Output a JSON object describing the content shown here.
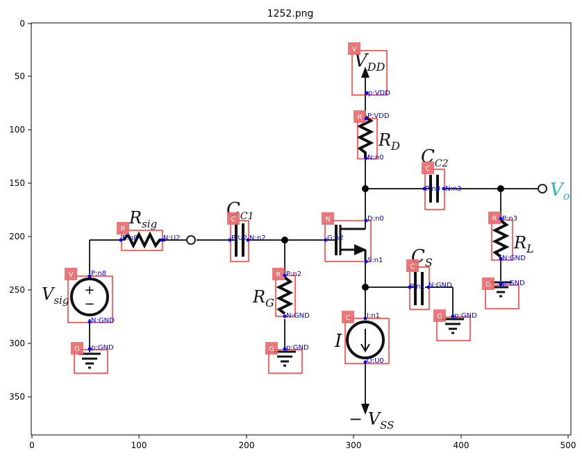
{
  "title": "1252.png",
  "axes": {
    "x_ticks": [
      "0",
      "100",
      "200",
      "300",
      "400",
      "500"
    ],
    "y_ticks": [
      "0",
      "50",
      "100",
      "150",
      "200",
      "250",
      "300",
      "350"
    ]
  },
  "components": {
    "vdd": {
      "badge": "V",
      "pins": [
        "p:VDD"
      ]
    },
    "rd": {
      "badge": "R",
      "pins": [
        "P:VDD",
        "N:n0"
      ]
    },
    "cc2": {
      "badge": "C",
      "pins": [
        "P:n0",
        "N:n3"
      ]
    },
    "rl": {
      "badge": "R",
      "pins": [
        "P:n3",
        "N:GND"
      ]
    },
    "gnd_rl": {
      "badge": "G",
      "pins": [
        "p:GND"
      ]
    },
    "rsig": {
      "badge": "R",
      "pins": [
        "P:n8",
        "N:U2"
      ]
    },
    "cc1": {
      "badge": "C",
      "pins": [
        "P:U2",
        "N:n2"
      ]
    },
    "nmos": {
      "badge": "N",
      "pins": [
        "D:n0",
        "G:n2",
        "S:n1"
      ]
    },
    "rg": {
      "badge": "R",
      "pins": [
        "P:n2",
        "N:GND"
      ]
    },
    "gnd_rg": {
      "badge": "G",
      "pins": [
        "p:GND"
      ]
    },
    "cs": {
      "badge": "C",
      "pins": [
        "P:n1",
        "N:GND"
      ]
    },
    "gnd_cs": {
      "badge": "G",
      "pins": [
        "p:GND"
      ]
    },
    "vsig": {
      "badge": "V",
      "pins": [
        "P:n8",
        "N:GND"
      ]
    },
    "gnd_vsig": {
      "badge": "G",
      "pins": [
        "p:GND"
      ]
    },
    "isrc": {
      "badge": "C",
      "pins": [
        "I:n1",
        "O:U0"
      ]
    }
  },
  "circuit_labels": {
    "vdd": "V",
    "vdd_sub": "DD",
    "rd": "R",
    "rd_sub": "D",
    "cc2": "C",
    "cc2_sub": "C2",
    "vo": "V",
    "vo_sub": "o",
    "rsig": "R",
    "rsig_sub": "sig",
    "cc1": "C",
    "cc1_sub": "C1",
    "rl": "R",
    "rl_sub": "L",
    "cs": "C",
    "cs_sub": "S",
    "rg": "R",
    "rg_sub": "G",
    "vsig": "V",
    "vsig_sub": "sig",
    "isrc": "I",
    "vss": "− V",
    "vss_sub": "SS",
    "plus": "+",
    "minus": "−"
  },
  "colors": {
    "annotation_box": "#ff0000",
    "annotation_badge": "#e8696b",
    "pin": "#0000ff",
    "wire": "#111111",
    "vo_label": "#2bb5b5"
  }
}
